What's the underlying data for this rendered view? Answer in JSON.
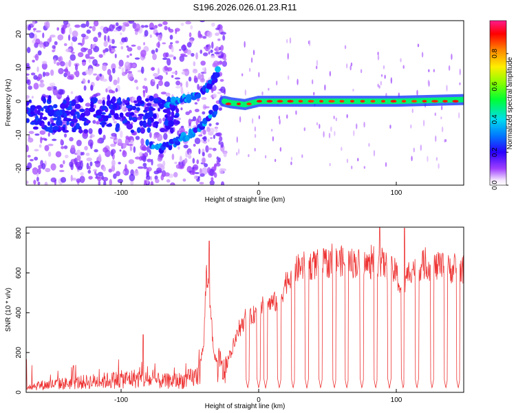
{
  "title": "S196.2026.026.01.23.R11",
  "chart_data": [
    {
      "type": "heatmap",
      "title": "",
      "xlabel": "Height of straight line (km)",
      "ylabel": "Frequency (Hz)",
      "xlim": [
        -169,
        149
      ],
      "ylim": [
        -25,
        24
      ],
      "xticks": [
        -100,
        0,
        100
      ],
      "yticks": [
        -20,
        -10,
        0,
        10,
        20
      ],
      "xtick_labels": [
        "-100",
        "0",
        "100"
      ],
      "ytick_labels": [
        "-20",
        "-10",
        "0",
        "10",
        "20"
      ],
      "colorbar": {
        "label": "Normalized spectral amplitude",
        "range": [
          0,
          1
        ],
        "ticks": [
          0.0,
          0.2,
          0.4,
          0.6,
          0.8
        ],
        "tick_labels": [
          "0.0",
          "0.2",
          "0.4",
          "0.6",
          "0.8"
        ]
      },
      "description_series": [
        {
          "name": "spectral ridge (after chirp)",
          "x": [
            -25,
            -20,
            -10,
            0,
            50,
            100,
            149
          ],
          "y": [
            0,
            -0.5,
            -1,
            0,
            0,
            0,
            0.5
          ],
          "amplitude": 0.9
        },
        {
          "name": "upper chirp branch",
          "x": [
            -70,
            -60,
            -50,
            -40,
            -35,
            -30
          ],
          "y": [
            -2,
            0,
            1,
            3,
            5,
            9
          ],
          "amplitude": 0.3
        },
        {
          "name": "lower chirp branch",
          "x": [
            -80,
            -70,
            -60,
            -50,
            -40,
            -30
          ],
          "y": [
            -13,
            -14,
            -12,
            -10,
            -7,
            -2
          ],
          "amplitude": 0.3
        }
      ]
    },
    {
      "type": "line",
      "title": "",
      "xlabel": "Height of straight line (km)",
      "ylabel": "SNR (10 * v/v)",
      "xlim": [
        -169,
        149
      ],
      "ylim": [
        0,
        830
      ],
      "xticks": [
        -100,
        0,
        100
      ],
      "yticks": [
        0,
        200,
        400,
        600,
        800
      ],
      "xtick_labels": [
        "-100",
        "0",
        "100"
      ],
      "ytick_labels": [
        "0",
        "200",
        "400",
        "600",
        "800"
      ],
      "color": "#ee3333",
      "series": [
        {
          "name": "SNR",
          "x": [
            -169,
            -150,
            -130,
            -110,
            -90,
            -70,
            -55,
            -45,
            -40,
            -38,
            -35,
            -33,
            -30,
            -25,
            -20,
            -15,
            -10,
            -5,
            0,
            5,
            10,
            15,
            20,
            25,
            30,
            40,
            50,
            60,
            70,
            80,
            88,
            95,
            100,
            104,
            110,
            120,
            130,
            140,
            149
          ],
          "y": [
            30,
            40,
            50,
            60,
            70,
            55,
            60,
            80,
            230,
            600,
            450,
            200,
            150,
            100,
            200,
            300,
            360,
            380,
            420,
            440,
            450,
            460,
            560,
            600,
            630,
            640,
            650,
            660,
            650,
            640,
            660,
            620,
            600,
            500,
            620,
            640,
            630,
            620,
            620
          ],
          "dropout_centers_km": [
            -8,
            0,
            5,
            15,
            25,
            35,
            45,
            55,
            64,
            75,
            85,
            95,
            105,
            115,
            126,
            136,
            145
          ],
          "dropout_min": 20,
          "peaks": [
            {
              "x": -84,
              "y": 290
            },
            {
              "x": -36,
              "y": 760
            },
            {
              "x": 88,
              "y": 830
            },
            {
              "x": 106,
              "y": 825
            }
          ]
        }
      ]
    }
  ]
}
